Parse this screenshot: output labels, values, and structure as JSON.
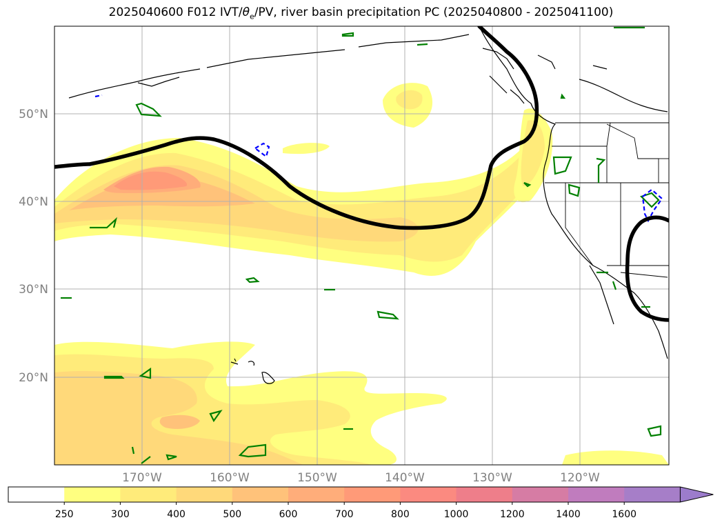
{
  "title": {
    "prefix": "2025040600 F012 IVT/",
    "theta": "θ",
    "theta_sub": "e",
    "suffix": "/PV, river basin precipitation PC (2025040800 - 2025041100)"
  },
  "map": {
    "lat_labels": [
      "50°N",
      "40°N",
      "30°N",
      "20°N"
    ],
    "lon_labels": [
      "170°W",
      "160°W",
      "150°W",
      "140°W",
      "130°W",
      "120°W"
    ],
    "label_color": "#808080",
    "gridline_color": "#b0b0b0",
    "pv_contour_color": "#000000",
    "theta_e_contour_color": "#008000",
    "dashed_contour_color": "#0000ff"
  },
  "colorbar": {
    "ticks": [
      "250",
      "300",
      "400",
      "500",
      "600",
      "700",
      "800",
      "1000",
      "1200",
      "1400",
      "1600"
    ],
    "colors": [
      "#ffffff",
      "#ffff80",
      "#ffeb7a",
      "#ffd97a",
      "#ffc27a",
      "#ffad7a",
      "#ff9a78",
      "#fb8a80",
      "#ee7e8a",
      "#d67ca4",
      "#c07cbe",
      "#a67ec8",
      "#9c7ccc"
    ]
  }
}
